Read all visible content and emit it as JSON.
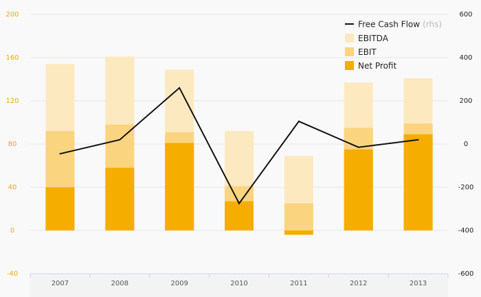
{
  "chart_data": {
    "type": "bar",
    "categories": [
      "2007",
      "2008",
      "2009",
      "2010",
      "2011",
      "2012",
      "2013"
    ],
    "bar_series": [
      {
        "name": "EBITDA",
        "values": [
          154,
          161,
          149,
          92,
          69,
          137,
          141
        ],
        "color": "#fde9bf"
      },
      {
        "name": "EBIT",
        "values": [
          92,
          98,
          91,
          41,
          25,
          95,
          99
        ],
        "color": "#fbd480"
      },
      {
        "name": "Net Profit",
        "values": [
          40,
          58,
          81,
          27,
          -4,
          75,
          89
        ],
        "color": "#f5ad00"
      }
    ],
    "line_series": {
      "name": "Free Cash Flow",
      "axis_note": "(rhs)",
      "values": [
        -45,
        20,
        260,
        -275,
        105,
        -15,
        20
      ],
      "color": "#111111"
    },
    "y_left": {
      "lim": [
        -40,
        200
      ],
      "ticks": [
        "200",
        "160",
        "120",
        "80",
        "40",
        "0",
        "-40"
      ],
      "color": "#f2a900"
    },
    "y_right": {
      "lim": [
        -600,
        600
      ],
      "ticks": [
        "600",
        "400",
        "200",
        "0",
        "-200",
        "-400",
        "-600"
      ]
    },
    "grid": true,
    "legend_position": "top-right",
    "title": "",
    "xlabel": "",
    "ylabel": ""
  }
}
